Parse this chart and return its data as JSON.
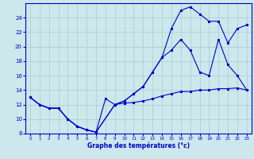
{
  "xlabel": "Graphe des températures (°c)",
  "background_color": "#cce8ec",
  "grid_color": "#aacccc",
  "line_color": "#0000cc",
  "ylim": [
    8,
    26
  ],
  "xlim": [
    -0.5,
    23.5
  ],
  "yticks": [
    8,
    10,
    12,
    14,
    16,
    18,
    20,
    22,
    24
  ],
  "xticks": [
    0,
    1,
    2,
    3,
    4,
    5,
    6,
    7,
    8,
    9,
    10,
    11,
    12,
    13,
    14,
    15,
    16,
    17,
    18,
    19,
    20,
    21,
    22,
    23
  ],
  "line1_x": [
    0,
    1,
    2,
    3,
    4,
    5,
    6,
    7,
    8,
    9,
    10,
    11,
    12,
    13,
    14,
    15,
    16,
    17,
    18,
    19,
    20,
    21,
    22,
    23
  ],
  "line1_y": [
    13,
    12,
    11.5,
    11.5,
    10,
    9.0,
    8.5,
    8.2,
    12.8,
    12.0,
    12.2,
    12.3,
    12.5,
    12.8,
    13.2,
    13.5,
    13.8,
    13.8,
    14.0,
    14.0,
    14.2,
    14.2,
    14.3,
    14.0
  ],
  "line2_x": [
    0,
    1,
    2,
    3,
    4,
    5,
    6,
    7,
    9,
    10,
    11,
    12,
    13,
    14,
    15,
    16,
    17,
    18,
    19,
    20,
    21,
    22,
    23
  ],
  "line2_y": [
    13,
    12,
    11.5,
    11.5,
    10,
    9.0,
    8.5,
    8.2,
    12.0,
    12.5,
    13.5,
    14.5,
    16.5,
    18.5,
    19.5,
    21.0,
    19.5,
    16.5,
    16.0,
    21.0,
    17.5,
    16.0,
    14.0
  ],
  "line3_x": [
    0,
    1,
    2,
    3,
    4,
    5,
    6,
    7,
    9,
    10,
    11,
    12,
    13,
    14,
    15,
    16,
    17,
    18,
    19,
    20,
    21,
    22,
    23
  ],
  "line3_y": [
    13,
    12,
    11.5,
    11.5,
    10,
    9.0,
    8.5,
    8.2,
    12.0,
    12.5,
    13.5,
    14.5,
    16.5,
    18.5,
    22.5,
    25.0,
    25.5,
    24.5,
    23.5,
    23.5,
    20.5,
    22.5,
    23.0
  ]
}
